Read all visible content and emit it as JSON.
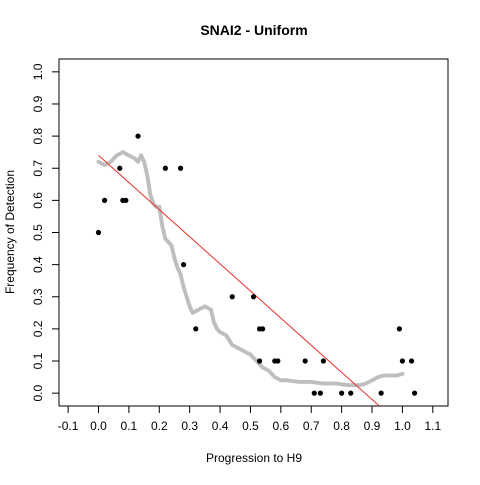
{
  "chart_data": {
    "type": "scatter",
    "title": "SNAI2 - Uniform",
    "xlabel": "Progression to H9",
    "ylabel": "Frequency of Detection",
    "xlim": [
      -0.13,
      1.15
    ],
    "ylim": [
      -0.04,
      1.04
    ],
    "x_ticks": [
      -0.1,
      0.0,
      0.1,
      0.2,
      0.3,
      0.4,
      0.5,
      0.6,
      0.7,
      0.8,
      0.9,
      1.0,
      1.1
    ],
    "x_tick_labels": [
      "-0.1",
      "0.0",
      "0.1",
      "0.2",
      "0.3",
      "0.4",
      "0.5",
      "0.6",
      "0.7",
      "0.8",
      "0.9",
      "1.0",
      "1.1"
    ],
    "y_ticks": [
      0.0,
      0.1,
      0.2,
      0.3,
      0.4,
      0.5,
      0.6,
      0.7,
      0.8,
      0.9,
      1.0
    ],
    "y_tick_labels": [
      "0.0",
      "0.1",
      "0.2",
      "0.3",
      "0.4",
      "0.5",
      "0.6",
      "0.7",
      "0.8",
      "0.9",
      "1.0"
    ],
    "grid": false,
    "colors": {
      "observed": "#000000",
      "smoothed": "#bebebe",
      "trend": "#e8302a"
    },
    "series": [
      {
        "kind": "points",
        "color": "#000000",
        "x": [
          0.0,
          0.02,
          0.07,
          0.08,
          0.09,
          0.13,
          0.22,
          0.27,
          0.28,
          0.32,
          0.44,
          0.51,
          0.53,
          0.54,
          0.53,
          0.58,
          0.59,
          0.68,
          0.71,
          0.73,
          0.74,
          0.8,
          0.83,
          0.93,
          0.99,
          1.0,
          1.03,
          1.04
        ],
        "y": [
          0.5,
          0.6,
          0.7,
          0.6,
          0.6,
          0.8,
          0.7,
          0.7,
          0.4,
          0.2,
          0.3,
          0.3,
          0.2,
          0.2,
          0.1,
          0.1,
          0.1,
          0.1,
          0.0,
          0.0,
          0.1,
          0.0,
          0.0,
          0.0,
          0.2,
          0.1,
          0.1,
          0.0
        ]
      },
      {
        "kind": "smoothed",
        "color": "#bebebe",
        "x": [
          0.0,
          0.02,
          0.04,
          0.06,
          0.08,
          0.1,
          0.12,
          0.13,
          0.14,
          0.15,
          0.16,
          0.17,
          0.18,
          0.19,
          0.2,
          0.21,
          0.22,
          0.23,
          0.24,
          0.25,
          0.26,
          0.27,
          0.28,
          0.29,
          0.3,
          0.31,
          0.33,
          0.35,
          0.37,
          0.38,
          0.39,
          0.4,
          0.42,
          0.44,
          0.46,
          0.48,
          0.5,
          0.52,
          0.54,
          0.56,
          0.58,
          0.6,
          0.62,
          0.66,
          0.7,
          0.74,
          0.78,
          0.82,
          0.86,
          0.88,
          0.9,
          0.92,
          0.94,
          0.96,
          0.98,
          1.0
        ],
        "y": [
          0.72,
          0.71,
          0.72,
          0.74,
          0.75,
          0.74,
          0.73,
          0.72,
          0.74,
          0.72,
          0.68,
          0.62,
          0.59,
          0.58,
          0.58,
          0.52,
          0.48,
          0.47,
          0.46,
          0.42,
          0.39,
          0.37,
          0.33,
          0.3,
          0.27,
          0.25,
          0.26,
          0.27,
          0.26,
          0.22,
          0.2,
          0.19,
          0.18,
          0.15,
          0.14,
          0.13,
          0.12,
          0.1,
          0.08,
          0.07,
          0.05,
          0.04,
          0.04,
          0.035,
          0.035,
          0.03,
          0.03,
          0.025,
          0.025,
          0.03,
          0.04,
          0.05,
          0.055,
          0.055,
          0.055,
          0.06
        ]
      },
      {
        "kind": "line",
        "color": "#e8302a",
        "x": [
          0.0,
          0.924
        ],
        "y": [
          0.74,
          -0.04
        ]
      }
    ]
  }
}
